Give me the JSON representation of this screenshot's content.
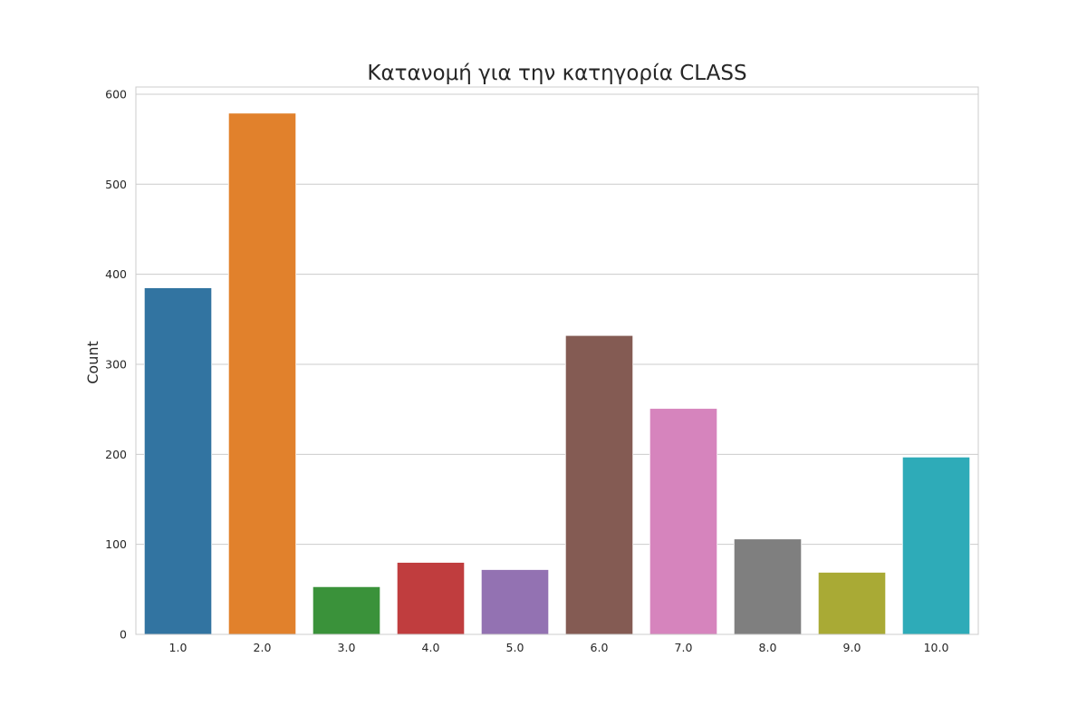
{
  "chart_data": {
    "type": "bar",
    "title": "Κατανομή για την κατηγορία CLASS",
    "xlabel": "",
    "ylabel": "Count",
    "categories": [
      "1.0",
      "2.0",
      "3.0",
      "4.0",
      "5.0",
      "6.0",
      "7.0",
      "8.0",
      "9.0",
      "10.0"
    ],
    "values": [
      385,
      579,
      53,
      80,
      72,
      332,
      251,
      106,
      69,
      197
    ],
    "colors": [
      "#3274a1",
      "#e1812c",
      "#3a923a",
      "#c03d3e",
      "#9372b2",
      "#845b53",
      "#d684bd",
      "#7f7f7f",
      "#a9aa35",
      "#2eabb8"
    ],
    "ylim": [
      0,
      608
    ],
    "yticks": [
      0,
      100,
      200,
      300,
      400,
      500,
      600
    ],
    "grid": true,
    "legend": "none"
  }
}
